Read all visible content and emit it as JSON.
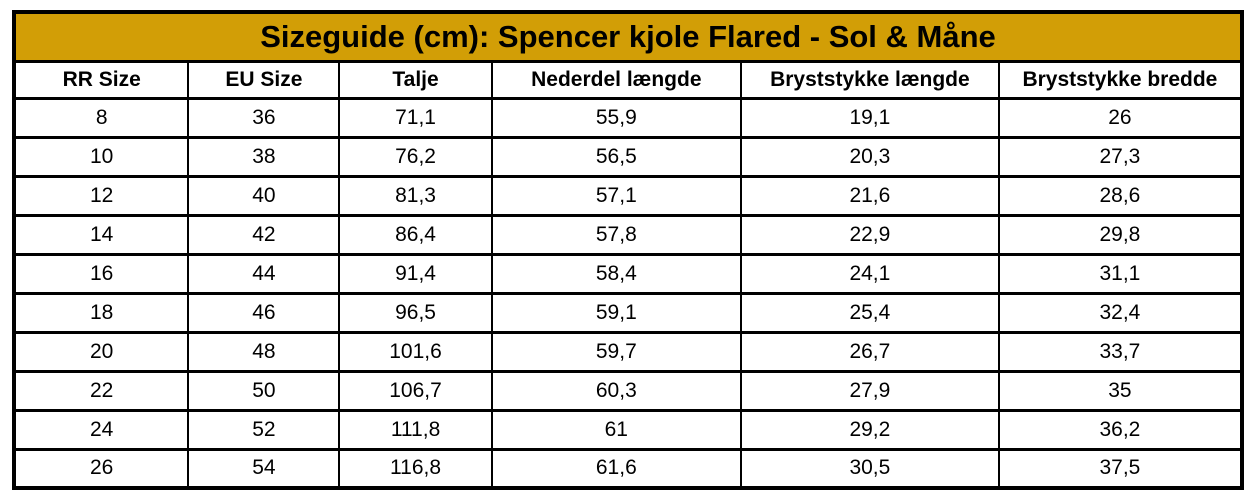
{
  "table": {
    "title": "Sizeguide (cm): Spencer kjole Flared - Sol & Måne",
    "columns": [
      "RR Size",
      "EU Size",
      "Talje",
      "Nederdel længde",
      "Bryststykke længde",
      "Bryststykke bredde"
    ],
    "rows": [
      [
        "8",
        "36",
        "71,1",
        "55,9",
        "19,1",
        "26"
      ],
      [
        "10",
        "38",
        "76,2",
        "56,5",
        "20,3",
        "27,3"
      ],
      [
        "12",
        "40",
        "81,3",
        "57,1",
        "21,6",
        "28,6"
      ],
      [
        "14",
        "42",
        "86,4",
        "57,8",
        "22,9",
        "29,8"
      ],
      [
        "16",
        "44",
        "91,4",
        "58,4",
        "24,1",
        "31,1"
      ],
      [
        "18",
        "46",
        "96,5",
        "59,1",
        "25,4",
        "32,4"
      ],
      [
        "20",
        "48",
        "101,6",
        "59,7",
        "26,7",
        "33,7"
      ],
      [
        "22",
        "50",
        "106,7",
        "60,3",
        "27,9",
        "35"
      ],
      [
        "24",
        "52",
        "111,8",
        "61",
        "29,2",
        "36,2"
      ],
      [
        "26",
        "54",
        "116,8",
        "61,6",
        "30,5",
        "37,5"
      ]
    ],
    "colors": {
      "title_bg": "#D29E06",
      "border": "#000000",
      "text": "#000000",
      "background": "#FFFFFF"
    }
  }
}
